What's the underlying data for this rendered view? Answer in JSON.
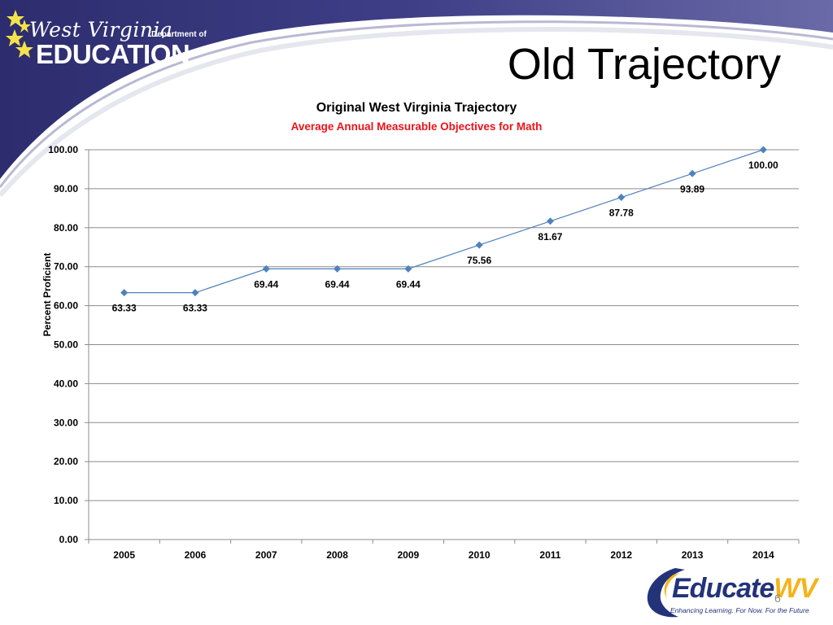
{
  "header": {
    "logo_script": "West Virginia",
    "logo_dept": "Department of",
    "logo_main": "EDUCATION",
    "slide_title": "Old Trajectory"
  },
  "chart_data": {
    "type": "line",
    "title": "Original West Virginia Trajectory",
    "subtitle": "Average Annual Measurable Objectives for Math",
    "xlabel": "",
    "ylabel": "Percent Proficient",
    "categories": [
      "2005",
      "2006",
      "2007",
      "2008",
      "2009",
      "2010",
      "2011",
      "2012",
      "2013",
      "2014"
    ],
    "series": [
      {
        "values": [
          63.33,
          63.33,
          69.44,
          69.44,
          69.44,
          75.56,
          81.67,
          87.78,
          93.89,
          100.0
        ]
      }
    ],
    "data_labels": [
      "63.33",
      "63.33",
      "69.44",
      "69.44",
      "69.44",
      "75.56",
      "81.67",
      "87.78",
      "93.89",
      "100.00"
    ],
    "y_ticks": [
      "0.00",
      "10.00",
      "20.00",
      "30.00",
      "40.00",
      "50.00",
      "60.00",
      "70.00",
      "80.00",
      "90.00",
      "100.00"
    ],
    "ylim": [
      0,
      100
    ],
    "grid": true,
    "legend": "none",
    "line_color": "#4f81bd",
    "subtitle_color": "#e8141b"
  },
  "footer": {
    "brand_main": "Educate",
    "brand_accent": "WV",
    "tagline": "Enhancing Learning. For Now. For the Future",
    "page_number": "6"
  },
  "colors": {
    "banner_dark": "#2f2f72",
    "banner_mid": "#4b4b94",
    "star": "#f3e24b",
    "brand_navy": "#23337a",
    "brand_gold": "#f3b41b"
  }
}
